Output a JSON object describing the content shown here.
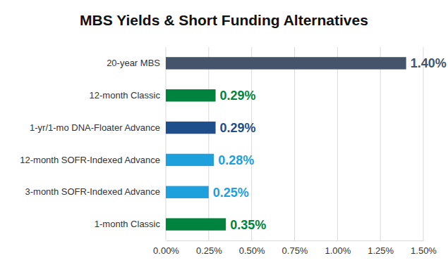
{
  "chart_data": {
    "type": "bar",
    "orientation": "horizontal",
    "title": "MBS Yields & Short Funding Alternatives",
    "categories": [
      "20-year MBS",
      "12-month Classic",
      "1-yr/1-mo DNA-Floater Advance",
      "12-month SOFR-Indexed Advance",
      "3-month SOFR-Indexed Advance",
      "1-month Classic"
    ],
    "values": [
      1.4,
      0.29,
      0.29,
      0.28,
      0.25,
      0.35
    ],
    "value_labels": [
      "1.40%",
      "0.29%",
      "0.29%",
      "0.28%",
      "0.25%",
      "0.35%"
    ],
    "colors": [
      "#44546a",
      "#00843d",
      "#1f4e8c",
      "#1ea0dc",
      "#1ea0dc",
      "#00843d"
    ],
    "xlim": [
      0,
      1.5
    ],
    "xticks": [
      {
        "value": 0,
        "label": "0.00%"
      },
      {
        "value": 0.25,
        "label": "0.25%"
      },
      {
        "value": 0.5,
        "label": "0.50%"
      },
      {
        "value": 0.75,
        "label": "0.75%"
      },
      {
        "value": 1,
        "label": "1.00%"
      },
      {
        "value": 1.25,
        "label": "1.25%"
      },
      {
        "value": 1.5,
        "label": "1.50%"
      }
    ],
    "grid": true,
    "data_labels": true
  }
}
